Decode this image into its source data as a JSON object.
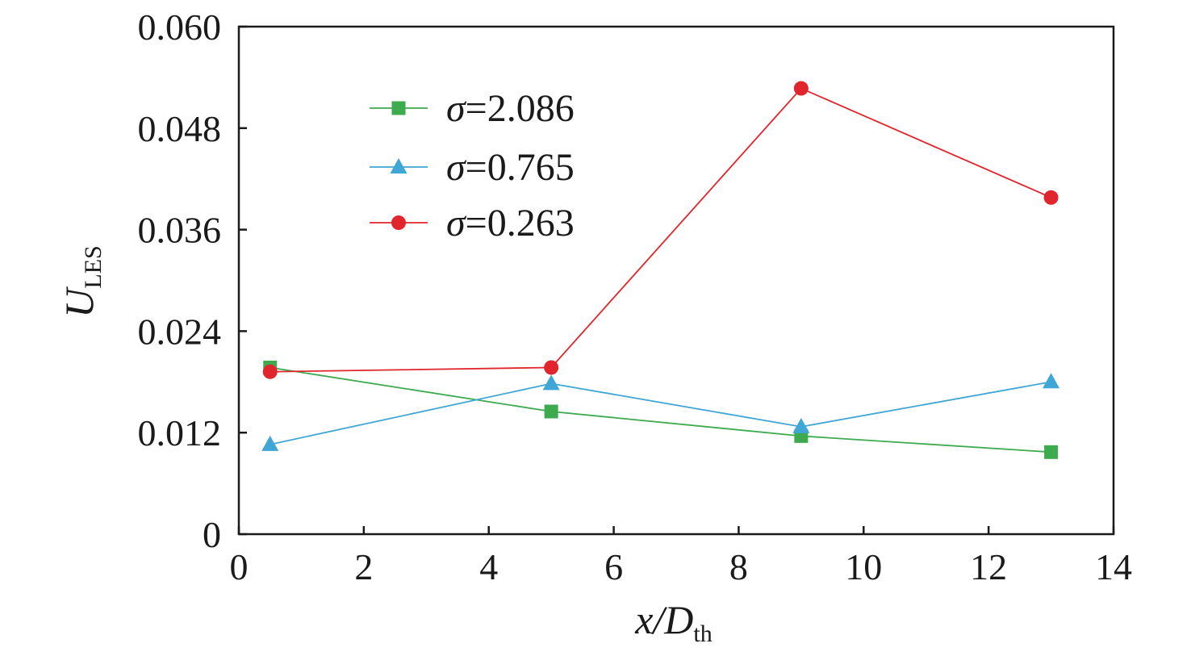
{
  "chart_data": {
    "type": "line",
    "x": [
      0.5,
      5,
      9,
      13
    ],
    "xlim": [
      0,
      14
    ],
    "ylim": [
      0,
      0.06
    ],
    "x_ticks": [
      0,
      2,
      4,
      6,
      8,
      10,
      12,
      14
    ],
    "x_tick_labels": [
      "0",
      "2",
      "4",
      "6",
      "8",
      "10",
      "12",
      "14"
    ],
    "y_ticks": [
      0,
      0.012,
      0.024,
      0.036,
      0.048,
      0.06
    ],
    "y_tick_labels": [
      "0",
      "0.012",
      "0.024",
      "0.036",
      "0.048",
      "0.060"
    ],
    "xlabel": {
      "main": "x/D",
      "sub": "th"
    },
    "ylabel": {
      "main": "U",
      "sub": "LES"
    },
    "grid": false,
    "legend_position": "top-left",
    "series": [
      {
        "sigma_symbol": "σ",
        "value_text": "=2.086",
        "marker": "square",
        "color": "#3daa4e",
        "values": [
          0.0197,
          0.0145,
          0.0116,
          0.0097
        ]
      },
      {
        "sigma_symbol": "σ",
        "value_text": "=0.765",
        "marker": "triangle",
        "color": "#3fa6d6",
        "values": [
          0.0106,
          0.0178,
          0.0127,
          0.018
        ]
      },
      {
        "sigma_symbol": "σ",
        "value_text": "=0.263",
        "marker": "circle",
        "color": "#e0262c",
        "values": [
          0.0192,
          0.0197,
          0.0527,
          0.0398
        ]
      }
    ]
  }
}
